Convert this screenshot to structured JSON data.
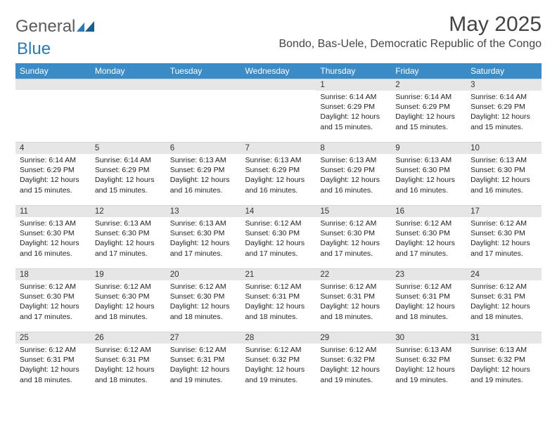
{
  "colors": {
    "header_bg": "#3b8bc7",
    "header_text": "#ffffff",
    "daynum_bg": "#e6e6e6",
    "body_bg": "#ffffff",
    "text": "#222222",
    "logo_gray": "#5b5b5b",
    "logo_blue": "#2a7ab8"
  },
  "typography": {
    "title_fontsize": 30,
    "location_fontsize": 16,
    "header_fontsize": 12,
    "daynum_fontsize": 11.5,
    "body_fontsize": 10.5
  },
  "logo": {
    "text1": "General",
    "text2": "Blue"
  },
  "title": "May 2025",
  "location": "Bondo, Bas-Uele, Democratic Republic of the Congo",
  "weekdays": [
    "Sunday",
    "Monday",
    "Tuesday",
    "Wednesday",
    "Thursday",
    "Friday",
    "Saturday"
  ],
  "weeks": [
    [
      {
        "n": "",
        "sr": "",
        "ss": "",
        "d1": "",
        "d2": ""
      },
      {
        "n": "",
        "sr": "",
        "ss": "",
        "d1": "",
        "d2": ""
      },
      {
        "n": "",
        "sr": "",
        "ss": "",
        "d1": "",
        "d2": ""
      },
      {
        "n": "",
        "sr": "",
        "ss": "",
        "d1": "",
        "d2": ""
      },
      {
        "n": "1",
        "sr": "Sunrise: 6:14 AM",
        "ss": "Sunset: 6:29 PM",
        "d1": "Daylight: 12 hours",
        "d2": "and 15 minutes."
      },
      {
        "n": "2",
        "sr": "Sunrise: 6:14 AM",
        "ss": "Sunset: 6:29 PM",
        "d1": "Daylight: 12 hours",
        "d2": "and 15 minutes."
      },
      {
        "n": "3",
        "sr": "Sunrise: 6:14 AM",
        "ss": "Sunset: 6:29 PM",
        "d1": "Daylight: 12 hours",
        "d2": "and 15 minutes."
      }
    ],
    [
      {
        "n": "4",
        "sr": "Sunrise: 6:14 AM",
        "ss": "Sunset: 6:29 PM",
        "d1": "Daylight: 12 hours",
        "d2": "and 15 minutes."
      },
      {
        "n": "5",
        "sr": "Sunrise: 6:14 AM",
        "ss": "Sunset: 6:29 PM",
        "d1": "Daylight: 12 hours",
        "d2": "and 15 minutes."
      },
      {
        "n": "6",
        "sr": "Sunrise: 6:13 AM",
        "ss": "Sunset: 6:29 PM",
        "d1": "Daylight: 12 hours",
        "d2": "and 16 minutes."
      },
      {
        "n": "7",
        "sr": "Sunrise: 6:13 AM",
        "ss": "Sunset: 6:29 PM",
        "d1": "Daylight: 12 hours",
        "d2": "and 16 minutes."
      },
      {
        "n": "8",
        "sr": "Sunrise: 6:13 AM",
        "ss": "Sunset: 6:29 PM",
        "d1": "Daylight: 12 hours",
        "d2": "and 16 minutes."
      },
      {
        "n": "9",
        "sr": "Sunrise: 6:13 AM",
        "ss": "Sunset: 6:30 PM",
        "d1": "Daylight: 12 hours",
        "d2": "and 16 minutes."
      },
      {
        "n": "10",
        "sr": "Sunrise: 6:13 AM",
        "ss": "Sunset: 6:30 PM",
        "d1": "Daylight: 12 hours",
        "d2": "and 16 minutes."
      }
    ],
    [
      {
        "n": "11",
        "sr": "Sunrise: 6:13 AM",
        "ss": "Sunset: 6:30 PM",
        "d1": "Daylight: 12 hours",
        "d2": "and 16 minutes."
      },
      {
        "n": "12",
        "sr": "Sunrise: 6:13 AM",
        "ss": "Sunset: 6:30 PM",
        "d1": "Daylight: 12 hours",
        "d2": "and 17 minutes."
      },
      {
        "n": "13",
        "sr": "Sunrise: 6:13 AM",
        "ss": "Sunset: 6:30 PM",
        "d1": "Daylight: 12 hours",
        "d2": "and 17 minutes."
      },
      {
        "n": "14",
        "sr": "Sunrise: 6:12 AM",
        "ss": "Sunset: 6:30 PM",
        "d1": "Daylight: 12 hours",
        "d2": "and 17 minutes."
      },
      {
        "n": "15",
        "sr": "Sunrise: 6:12 AM",
        "ss": "Sunset: 6:30 PM",
        "d1": "Daylight: 12 hours",
        "d2": "and 17 minutes."
      },
      {
        "n": "16",
        "sr": "Sunrise: 6:12 AM",
        "ss": "Sunset: 6:30 PM",
        "d1": "Daylight: 12 hours",
        "d2": "and 17 minutes."
      },
      {
        "n": "17",
        "sr": "Sunrise: 6:12 AM",
        "ss": "Sunset: 6:30 PM",
        "d1": "Daylight: 12 hours",
        "d2": "and 17 minutes."
      }
    ],
    [
      {
        "n": "18",
        "sr": "Sunrise: 6:12 AM",
        "ss": "Sunset: 6:30 PM",
        "d1": "Daylight: 12 hours",
        "d2": "and 17 minutes."
      },
      {
        "n": "19",
        "sr": "Sunrise: 6:12 AM",
        "ss": "Sunset: 6:30 PM",
        "d1": "Daylight: 12 hours",
        "d2": "and 18 minutes."
      },
      {
        "n": "20",
        "sr": "Sunrise: 6:12 AM",
        "ss": "Sunset: 6:30 PM",
        "d1": "Daylight: 12 hours",
        "d2": "and 18 minutes."
      },
      {
        "n": "21",
        "sr": "Sunrise: 6:12 AM",
        "ss": "Sunset: 6:31 PM",
        "d1": "Daylight: 12 hours",
        "d2": "and 18 minutes."
      },
      {
        "n": "22",
        "sr": "Sunrise: 6:12 AM",
        "ss": "Sunset: 6:31 PM",
        "d1": "Daylight: 12 hours",
        "d2": "and 18 minutes."
      },
      {
        "n": "23",
        "sr": "Sunrise: 6:12 AM",
        "ss": "Sunset: 6:31 PM",
        "d1": "Daylight: 12 hours",
        "d2": "and 18 minutes."
      },
      {
        "n": "24",
        "sr": "Sunrise: 6:12 AM",
        "ss": "Sunset: 6:31 PM",
        "d1": "Daylight: 12 hours",
        "d2": "and 18 minutes."
      }
    ],
    [
      {
        "n": "25",
        "sr": "Sunrise: 6:12 AM",
        "ss": "Sunset: 6:31 PM",
        "d1": "Daylight: 12 hours",
        "d2": "and 18 minutes."
      },
      {
        "n": "26",
        "sr": "Sunrise: 6:12 AM",
        "ss": "Sunset: 6:31 PM",
        "d1": "Daylight: 12 hours",
        "d2": "and 18 minutes."
      },
      {
        "n": "27",
        "sr": "Sunrise: 6:12 AM",
        "ss": "Sunset: 6:31 PM",
        "d1": "Daylight: 12 hours",
        "d2": "and 19 minutes."
      },
      {
        "n": "28",
        "sr": "Sunrise: 6:12 AM",
        "ss": "Sunset: 6:32 PM",
        "d1": "Daylight: 12 hours",
        "d2": "and 19 minutes."
      },
      {
        "n": "29",
        "sr": "Sunrise: 6:12 AM",
        "ss": "Sunset: 6:32 PM",
        "d1": "Daylight: 12 hours",
        "d2": "and 19 minutes."
      },
      {
        "n": "30",
        "sr": "Sunrise: 6:13 AM",
        "ss": "Sunset: 6:32 PM",
        "d1": "Daylight: 12 hours",
        "d2": "and 19 minutes."
      },
      {
        "n": "31",
        "sr": "Sunrise: 6:13 AM",
        "ss": "Sunset: 6:32 PM",
        "d1": "Daylight: 12 hours",
        "d2": "and 19 minutes."
      }
    ]
  ]
}
